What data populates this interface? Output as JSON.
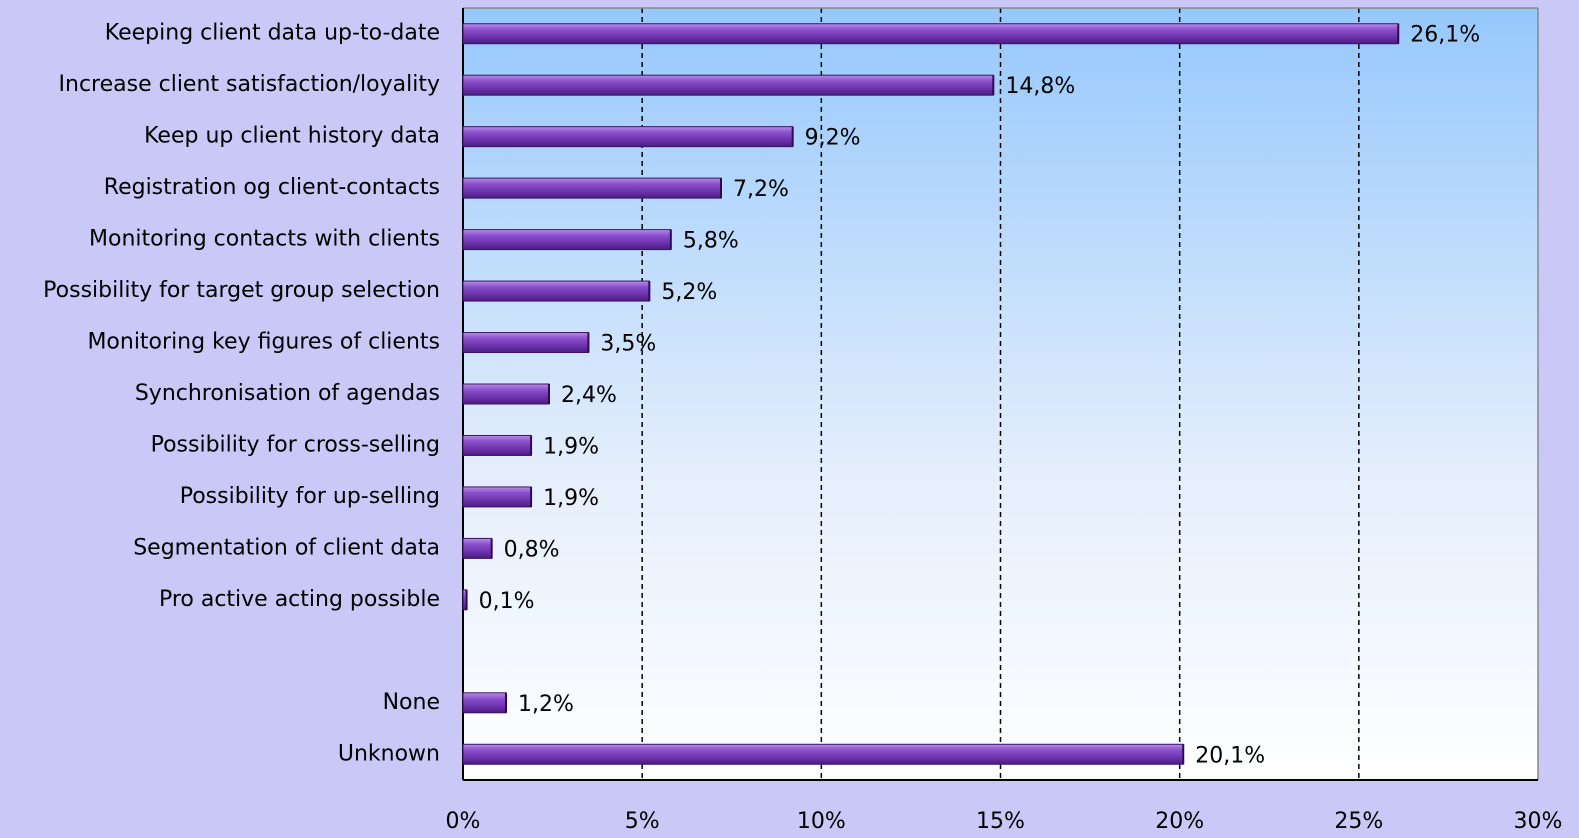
{
  "chart_data": {
    "type": "bar",
    "orientation": "horizontal",
    "categories": [
      "Keeping client data up-to-date",
      "Increase client satisfaction/loyality",
      "Keep up client history data",
      "Registration og client-contacts",
      "Monitoring contacts with clients",
      "Possibility for target group selection",
      "Monitoring key figures of clients",
      "Synchronisation of agendas",
      "Possibility for cross-selling",
      "Possibility for up-selling",
      "Segmentation of client data",
      "Pro active acting possible",
      null,
      "None",
      "Unknown"
    ],
    "values": [
      26.1,
      14.8,
      9.2,
      7.2,
      5.8,
      5.2,
      3.5,
      2.4,
      1.9,
      1.9,
      0.8,
      0.1,
      null,
      1.2,
      20.1
    ],
    "value_labels": [
      "26,1%",
      "14,8%",
      "9,2%",
      "7,2%",
      "5,8%",
      "5,2%",
      "3,5%",
      "2,4%",
      "1,9%",
      "1,9%",
      "0,8%",
      "0,1%",
      null,
      "1,2%",
      "20,1%"
    ],
    "color": "#7a3fc0",
    "xlim": [
      0,
      30
    ],
    "xticks": [
      {
        "value": 0,
        "label": "0%"
      },
      {
        "value": 5,
        "label": "5%"
      },
      {
        "value": 10,
        "label": "10%"
      },
      {
        "value": 15,
        "label": "15%"
      },
      {
        "value": 20,
        "label": "20%"
      },
      {
        "value": 25,
        "label": "25%"
      },
      {
        "value": 30,
        "label": "30%"
      }
    ],
    "grid": true
  }
}
